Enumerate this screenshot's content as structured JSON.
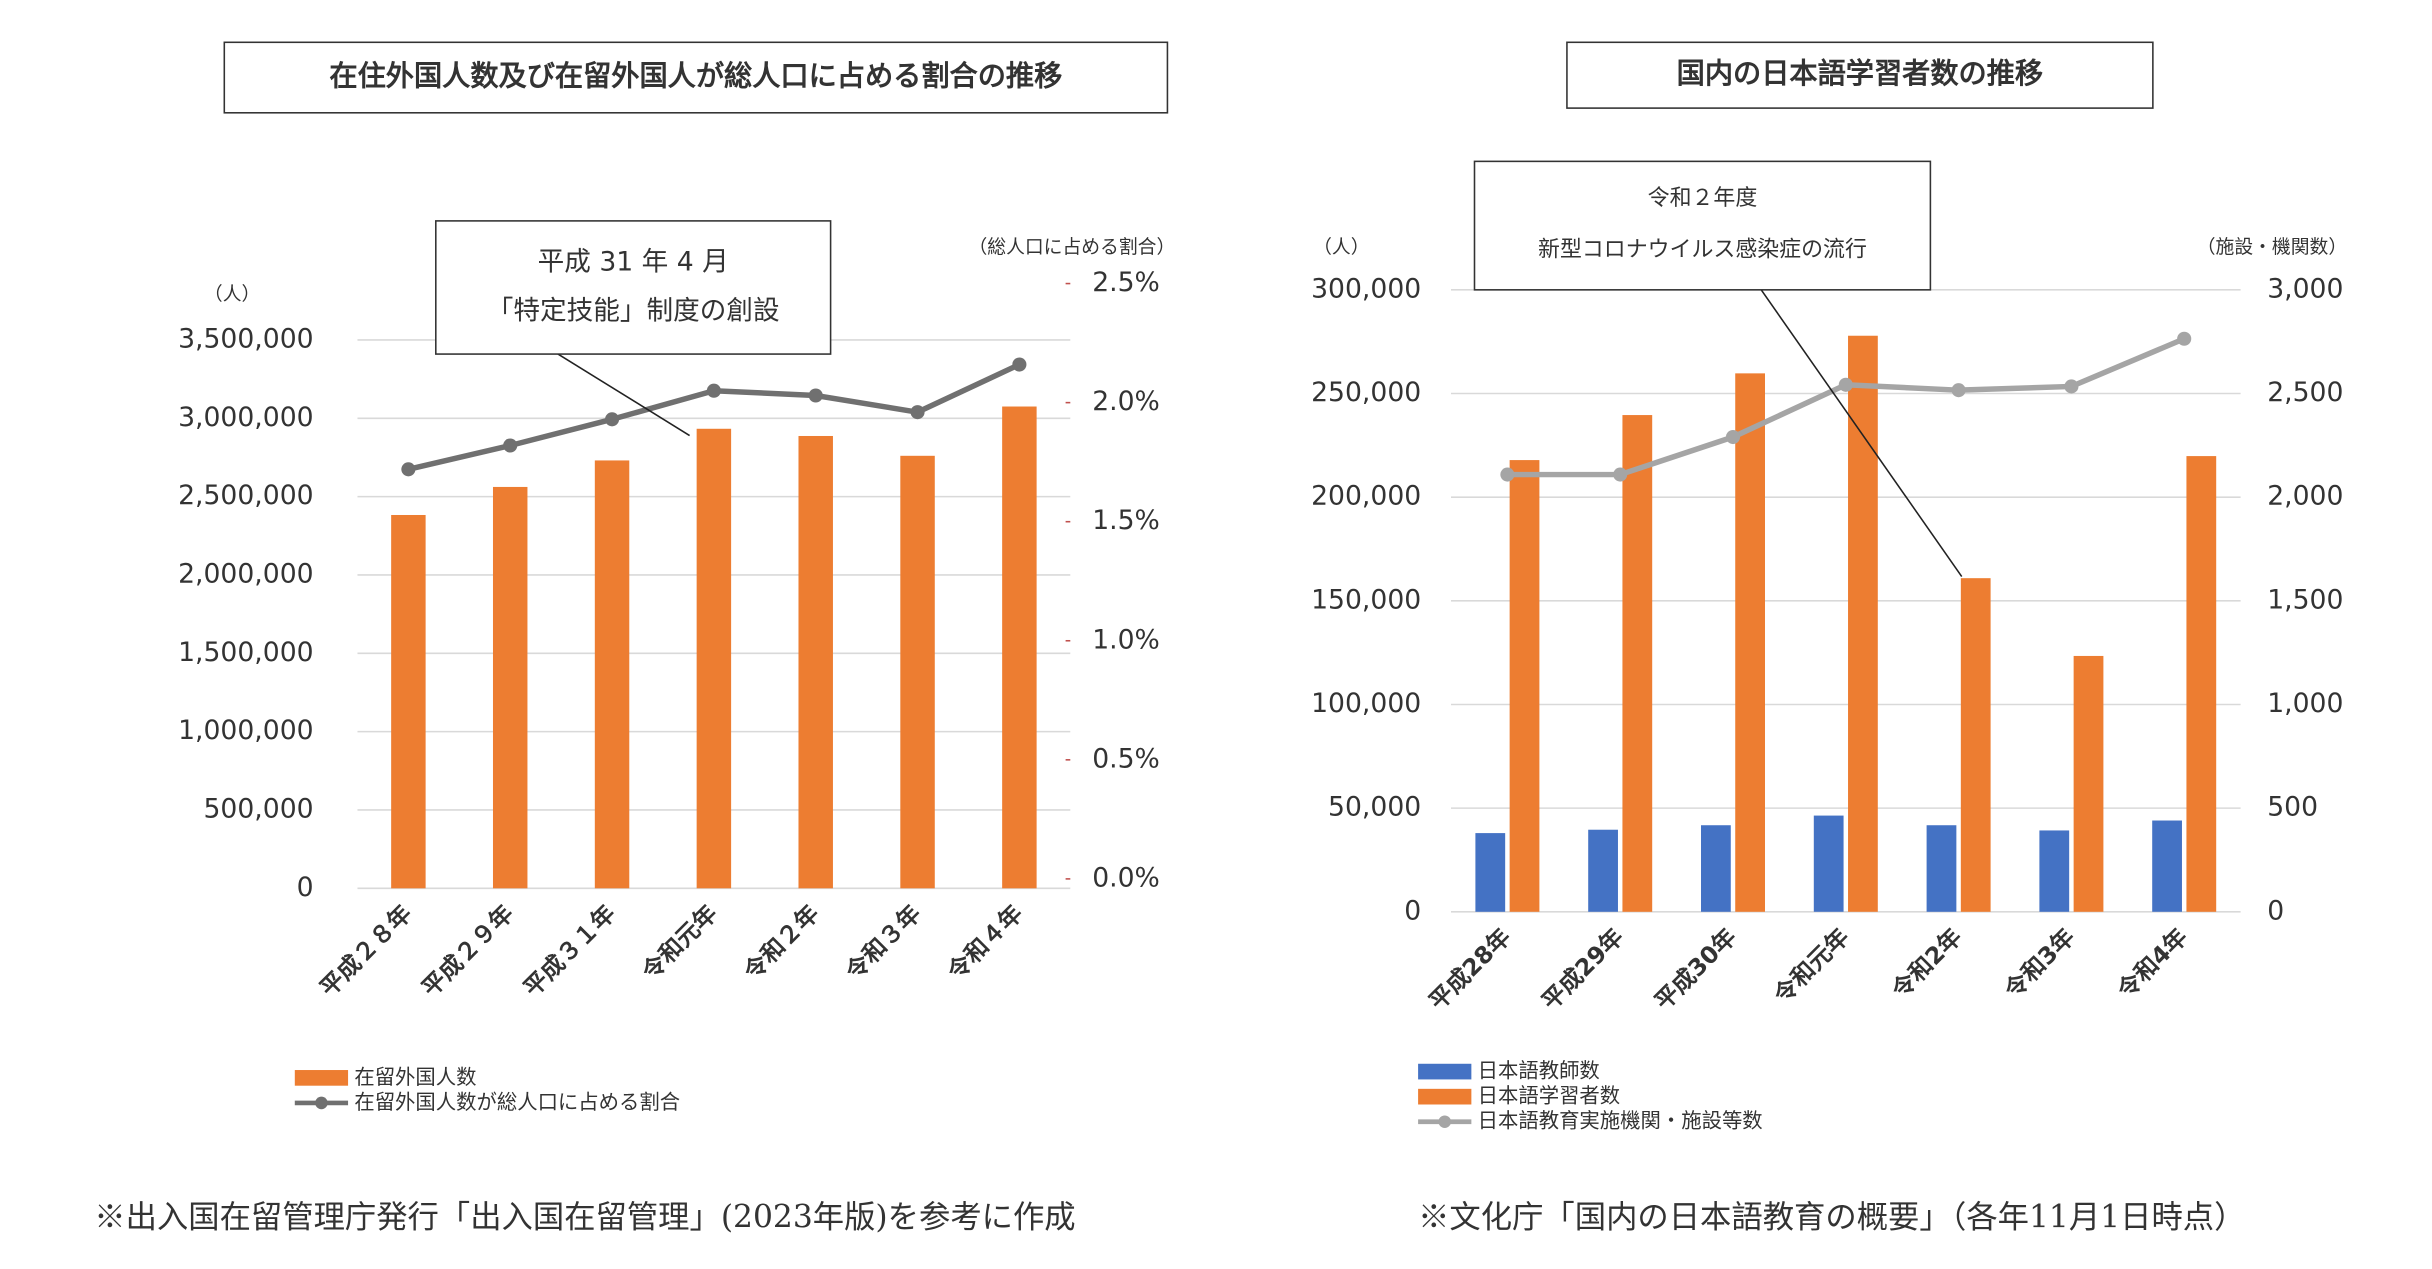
{
  "chart_data": [
    {
      "type": "bar",
      "title": "在住外国人数及び在留外国人が総人口に占める割合の推移",
      "y_label": "（人）",
      "y2_label": "（総人口に占める割合）",
      "annotations": [
        "平成 31 年 4 月",
        "「特定技能」制度の創設"
      ],
      "note": "※出入国在留管理庁発行「出入国在留管理」(2023年版)を参考に作成",
      "categories": [
        "平成２８年",
        "平成２９年",
        "平成３１年",
        "令和元年",
        "令和２年",
        "令和３年",
        "令和４年"
      ],
      "series": [
        {
          "name": "在留外国人数",
          "type": "bar",
          "color": "#ed7d31",
          "values": [
            2382822,
            2561848,
            2731093,
            2933137,
            2887116,
            2760635,
            3075213
          ]
        },
        {
          "name": "在留外国人数が総人口に占める割合",
          "type": "line",
          "color": "#707070",
          "axis": "y2",
          "values": [
            1.72,
            1.82,
            1.93,
            2.05,
            2.03,
            1.96,
            2.16
          ]
        }
      ],
      "ylim": [
        0,
        3500000
      ],
      "yticks": [
        0,
        {
          "value": 500000,
          "label": "500,000"
        },
        {
          "value": 1000000,
          "label": "1,000,000"
        },
        {
          "value": 1500000,
          "label": "1,500,000"
        },
        {
          "value": 2000000,
          "label": "2,000,000"
        },
        {
          "value": 2500000,
          "label": "2,500,000"
        },
        {
          "value": 3000000,
          "label": "3,000,000"
        },
        {
          "value": 3500000,
          "label": "3,500,000"
        }
      ],
      "y2lim": [
        0,
        2.5
      ],
      "y2ticks": [
        {
          "value": 0,
          "label": "0.0%"
        },
        {
          "value": 0.5,
          "label": "0.5%"
        },
        {
          "value": 1,
          "label": "1.0%"
        },
        {
          "value": 1.5,
          "label": "1.5%"
        },
        {
          "value": 2,
          "label": "2.0%"
        },
        {
          "value": 2.5,
          "label": "2.5%"
        }
      ],
      "grid": true
    },
    {
      "type": "bar",
      "title": "国内の日本語学習者数の推移",
      "y_label": "（人）",
      "y2_label": "（施設・機関数）",
      "annotations": [
        "令和２年度",
        "新型コロナウイルス感染症の流行"
      ],
      "note": "※文化庁「国内の日本語教育の概要」（各年11月1日時点）",
      "categories": [
        "平成28年",
        "平成29年",
        "平成30年",
        "令和元年",
        "令和2年",
        "令和3年",
        "令和4年"
      ],
      "series": [
        {
          "name": "日本語教師数",
          "type": "bar",
          "color": "#4472c4",
          "values": [
            37962,
            39588,
            41755,
            46411,
            41755,
            39241,
            44030
          ]
        },
        {
          "name": "日本語学習者数",
          "type": "bar",
          "color": "#ed7d31",
          "values": [
            217881,
            239597,
            259711,
            277857,
            160921,
            123408,
            219808
          ]
        },
        {
          "name": "日本語教育実施機関・施設等数",
          "type": "line",
          "color": "#a5a5a5",
          "axis": "y2",
          "values": [
            2109,
            2109,
            2290,
            2542,
            2516,
            2534,
            2764
          ]
        }
      ],
      "ylim": [
        0,
        300000
      ],
      "yticks": [
        0,
        {
          "value": 50000,
          "label": "50,000"
        },
        {
          "value": 100000,
          "label": "100,000"
        },
        {
          "value": 150000,
          "label": "150,000"
        },
        {
          "value": 200000,
          "label": "200,000"
        },
        {
          "value": 250000,
          "label": "250,000"
        },
        {
          "value": 300000,
          "label": "300,000"
        }
      ],
      "y2lim": [
        0,
        3000
      ],
      "y2ticks": [
        0,
        500,
        {
          "value": 1000,
          "label": "1,000"
        },
        {
          "value": 1500,
          "label": "1,500"
        },
        {
          "value": 2000,
          "label": "2,000"
        },
        {
          "value": 2500,
          "label": "2,500"
        },
        {
          "value": 3000,
          "label": "3,000"
        }
      ],
      "grid": true
    }
  ]
}
